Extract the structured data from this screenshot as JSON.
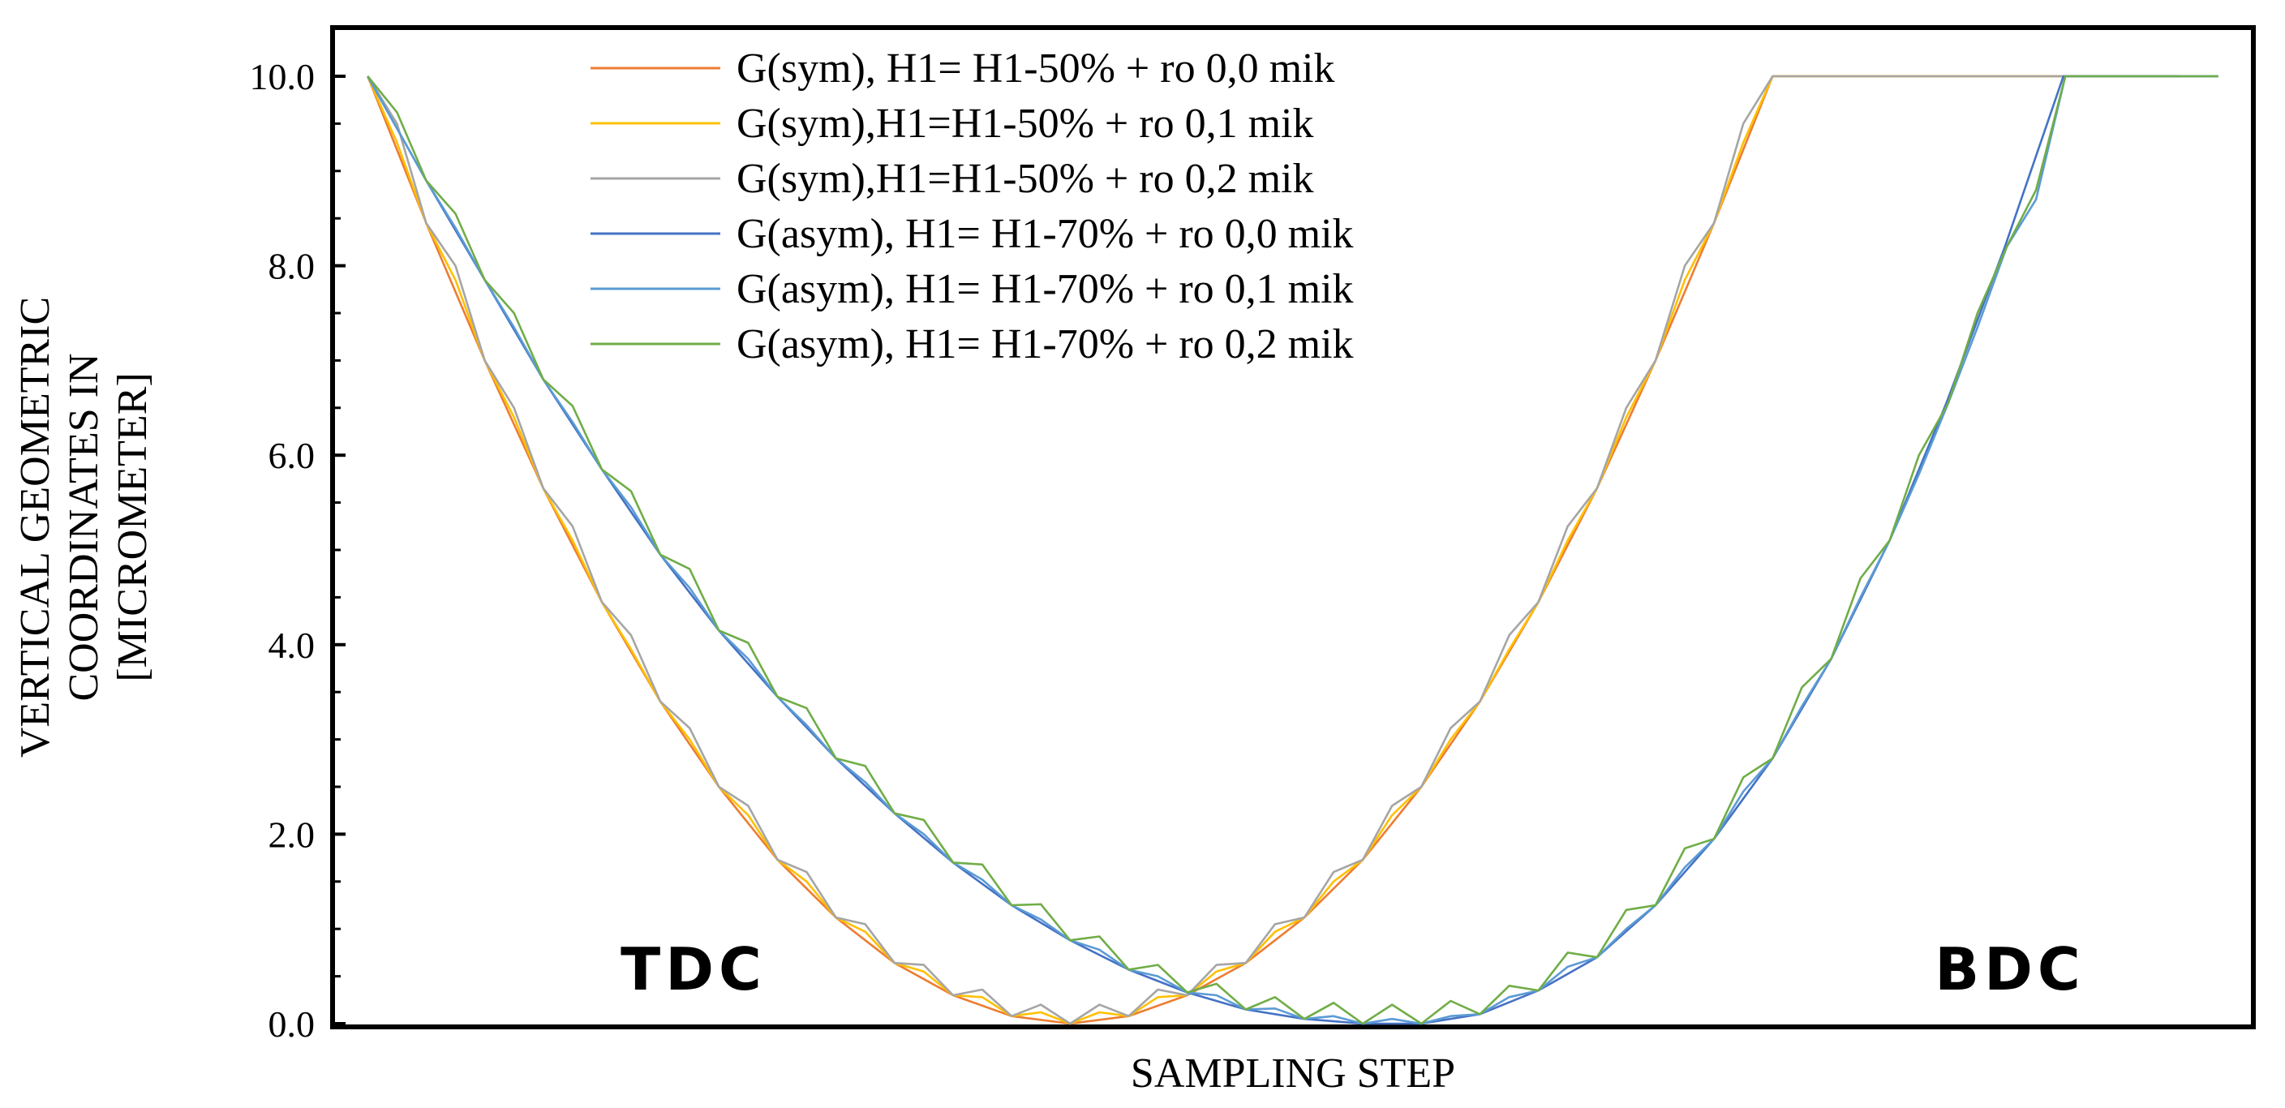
{
  "chart_data": {
    "type": "line",
    "title": "",
    "xlabel": "SAMPLING STEP",
    "ylabel_lines": [
      "VERTICAL GEOMETRIC",
      "COORDINATES IN",
      "[MICROMETER]"
    ],
    "ylim": [
      0,
      10
    ],
    "yticks": [
      "0.0",
      "2.0",
      "4.0",
      "6.0",
      "8.0",
      "10.0"
    ],
    "xlim": [
      0,
      100
    ],
    "grid": false,
    "legend_position": "top-center",
    "annotations": [
      {
        "text": "TDC",
        "x": 19,
        "y": 0.8
      },
      {
        "text": "BDC",
        "x": 90,
        "y": 0.8
      }
    ],
    "series": [
      {
        "name": "G(sym), H1= H1-50% + ro 0,0 mik",
        "color": "#ED7D31",
        "x": [
          1,
          4.1,
          7.2,
          10.3,
          13.4,
          16.5,
          19.6,
          22.7,
          25.8,
          28.9,
          32,
          35.1,
          38.2,
          41.3,
          44.4,
          47.5,
          50.6,
          53.7,
          56.8,
          59.9,
          63,
          66.1,
          69.2,
          72.3,
          75.4,
          78.5,
          81.6,
          84.6,
          87.7,
          90.8,
          93.9,
          97
        ],
        "y": [
          10,
          8.45,
          7.0,
          5.65,
          4.45,
          3.4,
          2.5,
          1.73,
          1.12,
          0.64,
          0.3,
          0.08,
          0,
          0.08,
          0.3,
          0.64,
          1.12,
          1.73,
          2.5,
          3.4,
          4.45,
          5.65,
          7.0,
          8.45,
          10,
          10,
          10,
          10,
          10,
          10,
          10,
          10
        ]
      },
      {
        "name": "G(sym),H1=H1-50% + ro 0,1 mik",
        "color": "#FFC000",
        "x": [
          1,
          2.55,
          4.1,
          5.65,
          7.2,
          8.75,
          10.3,
          11.85,
          13.4,
          14.95,
          16.5,
          18.05,
          19.6,
          21.15,
          22.7,
          24.25,
          25.8,
          27.35,
          28.9,
          30.45,
          32,
          33.55,
          35.1,
          36.65,
          38.2,
          39.75,
          41.3,
          42.85,
          44.4,
          45.95,
          47.5,
          49.05,
          50.6,
          52.15,
          53.7,
          55.25,
          56.8,
          58.35,
          59.9,
          61.45,
          63,
          64.55,
          66.1,
          67.65,
          69.2,
          70.75,
          72.3,
          73.85,
          75.4,
          97
        ],
        "y": [
          10,
          9.3,
          8.45,
          7.85,
          7.0,
          6.4,
          5.65,
          5.1,
          4.45,
          3.95,
          3.4,
          3.0,
          2.5,
          2.2,
          1.73,
          1.5,
          1.12,
          0.97,
          0.64,
          0.55,
          0.3,
          0.28,
          0.08,
          0.12,
          0,
          0.12,
          0.08,
          0.28,
          0.3,
          0.55,
          0.64,
          0.97,
          1.12,
          1.5,
          1.73,
          2.2,
          2.5,
          3.0,
          3.4,
          3.95,
          4.45,
          5.1,
          5.65,
          6.4,
          7.0,
          7.85,
          8.45,
          9.3,
          10,
          10
        ]
      },
      {
        "name": "G(sym),H1=H1-50% + ro 0,2 mik",
        "color": "#A5A5A5",
        "x": [
          1,
          2.55,
          4.1,
          5.65,
          7.2,
          8.75,
          10.3,
          11.85,
          13.4,
          14.95,
          16.5,
          18.05,
          19.6,
          21.15,
          22.7,
          24.25,
          25.8,
          27.35,
          28.9,
          30.45,
          32,
          33.55,
          35.1,
          36.65,
          38.2,
          39.75,
          41.3,
          42.85,
          44.4,
          45.95,
          47.5,
          49.05,
          50.6,
          52.15,
          53.7,
          55.25,
          56.8,
          58.35,
          59.9,
          61.45,
          63,
          64.55,
          66.1,
          67.65,
          69.2,
          70.75,
          72.3,
          73.85,
          75.4,
          97
        ],
        "y": [
          10,
          9.5,
          8.45,
          8.0,
          7.0,
          6.5,
          5.65,
          5.25,
          4.45,
          4.1,
          3.4,
          3.12,
          2.5,
          2.3,
          1.73,
          1.6,
          1.12,
          1.05,
          0.64,
          0.62,
          0.3,
          0.36,
          0.08,
          0.2,
          0,
          0.2,
          0.08,
          0.36,
          0.3,
          0.62,
          0.64,
          1.05,
          1.12,
          1.6,
          1.73,
          2.3,
          2.5,
          3.12,
          3.4,
          4.1,
          4.45,
          5.25,
          5.65,
          6.5,
          7.0,
          8.0,
          8.45,
          9.5,
          10,
          10
        ]
      },
      {
        "name": "G(asym), H1= H1-70% + ro 0,0 mik",
        "color": "#4472C4",
        "x": [
          1,
          4.1,
          7.2,
          10.3,
          13.4,
          16.5,
          19.6,
          22.7,
          25.8,
          28.9,
          32,
          35.1,
          38.2,
          41.3,
          44.4,
          47.5,
          50.6,
          53.7,
          56.8,
          59.9,
          63,
          66.1,
          69.2,
          72.3,
          75.4,
          78.5,
          81.6,
          84.6,
          87.7,
          90.8,
          93.9,
          97,
          99
        ],
        "y": [
          10,
          8.9,
          7.85,
          6.8,
          5.85,
          4.95,
          4.15,
          3.45,
          2.8,
          2.22,
          1.7,
          1.25,
          0.88,
          0.57,
          0.33,
          0.15,
          0.05,
          0,
          0,
          0.1,
          0.35,
          0.7,
          1.25,
          1.95,
          2.8,
          3.85,
          5.1,
          6.55,
          8.2,
          10,
          10,
          10,
          10
        ]
      },
      {
        "name": "G(asym), H1= H1-70% + ro 0,1 mik",
        "color": "#5B9BD5",
        "x": [
          1,
          2.55,
          4.1,
          5.65,
          7.2,
          8.75,
          10.3,
          11.85,
          13.4,
          14.95,
          16.5,
          18.05,
          19.6,
          21.15,
          22.7,
          24.25,
          25.8,
          27.35,
          28.9,
          30.45,
          32,
          33.55,
          35.1,
          36.65,
          38.2,
          39.75,
          41.3,
          42.85,
          44.4,
          45.95,
          47.5,
          49.05,
          50.6,
          52.15,
          53.7,
          55.25,
          56.8,
          58.35,
          59.9,
          61.45,
          63,
          64.55,
          66.1,
          67.65,
          69.2,
          70.75,
          72.3,
          73.85,
          75.4,
          76.95,
          78.5,
          80.05,
          81.6,
          83.15,
          84.7,
          86.25,
          87.8,
          89.35,
          90.9,
          92.45,
          94,
          95.55,
          97,
          99
        ],
        "y": [
          10,
          9.45,
          8.9,
          8.4,
          7.85,
          7.35,
          6.8,
          6.35,
          5.85,
          5.45,
          4.95,
          4.6,
          4.15,
          3.85,
          3.45,
          3.15,
          2.8,
          2.55,
          2.22,
          2.0,
          1.7,
          1.52,
          1.25,
          1.1,
          0.88,
          0.78,
          0.57,
          0.5,
          0.33,
          0.3,
          0.15,
          0.16,
          0.05,
          0.08,
          0,
          0.05,
          0,
          0.08,
          0.1,
          0.28,
          0.35,
          0.6,
          0.7,
          1.0,
          1.25,
          1.65,
          1.95,
          2.45,
          2.8,
          3.35,
          3.85,
          4.5,
          5.1,
          5.8,
          6.55,
          7.35,
          8.2,
          8.7,
          10,
          10,
          10,
          10,
          10,
          10
        ]
      },
      {
        "name": "G(asym), H1= H1-70% + ro 0,2 mik",
        "color": "#70AD47",
        "x": [
          1,
          2.55,
          4.1,
          5.65,
          7.2,
          8.75,
          10.3,
          11.85,
          13.4,
          14.95,
          16.5,
          18.05,
          19.6,
          21.15,
          22.7,
          24.25,
          25.8,
          27.35,
          28.9,
          30.45,
          32,
          33.55,
          35.1,
          36.65,
          38.2,
          39.75,
          41.3,
          42.85,
          44.4,
          45.95,
          47.5,
          49.05,
          50.6,
          52.15,
          53.7,
          55.25,
          56.8,
          58.35,
          59.9,
          61.45,
          63,
          64.55,
          66.1,
          67.65,
          69.2,
          70.75,
          72.3,
          73.85,
          75.4,
          76.95,
          78.5,
          80.05,
          81.6,
          83.15,
          84.7,
          86.25,
          87.8,
          89.35,
          90.9,
          92.45,
          94,
          95.55,
          97,
          99
        ],
        "y": [
          10,
          9.62,
          8.9,
          8.55,
          7.85,
          7.5,
          6.8,
          6.52,
          5.85,
          5.62,
          4.95,
          4.8,
          4.15,
          4.02,
          3.45,
          3.33,
          2.8,
          2.72,
          2.22,
          2.15,
          1.7,
          1.68,
          1.25,
          1.26,
          0.88,
          0.92,
          0.57,
          0.62,
          0.33,
          0.42,
          0.15,
          0.28,
          0.05,
          0.22,
          0,
          0.2,
          0,
          0.24,
          0.1,
          0.4,
          0.35,
          0.75,
          0.7,
          1.2,
          1.25,
          1.85,
          1.95,
          2.6,
          2.8,
          3.55,
          3.85,
          4.7,
          5.1,
          6.0,
          6.55,
          7.5,
          8.2,
          8.8,
          10,
          10,
          10,
          10,
          10,
          10
        ]
      }
    ]
  }
}
